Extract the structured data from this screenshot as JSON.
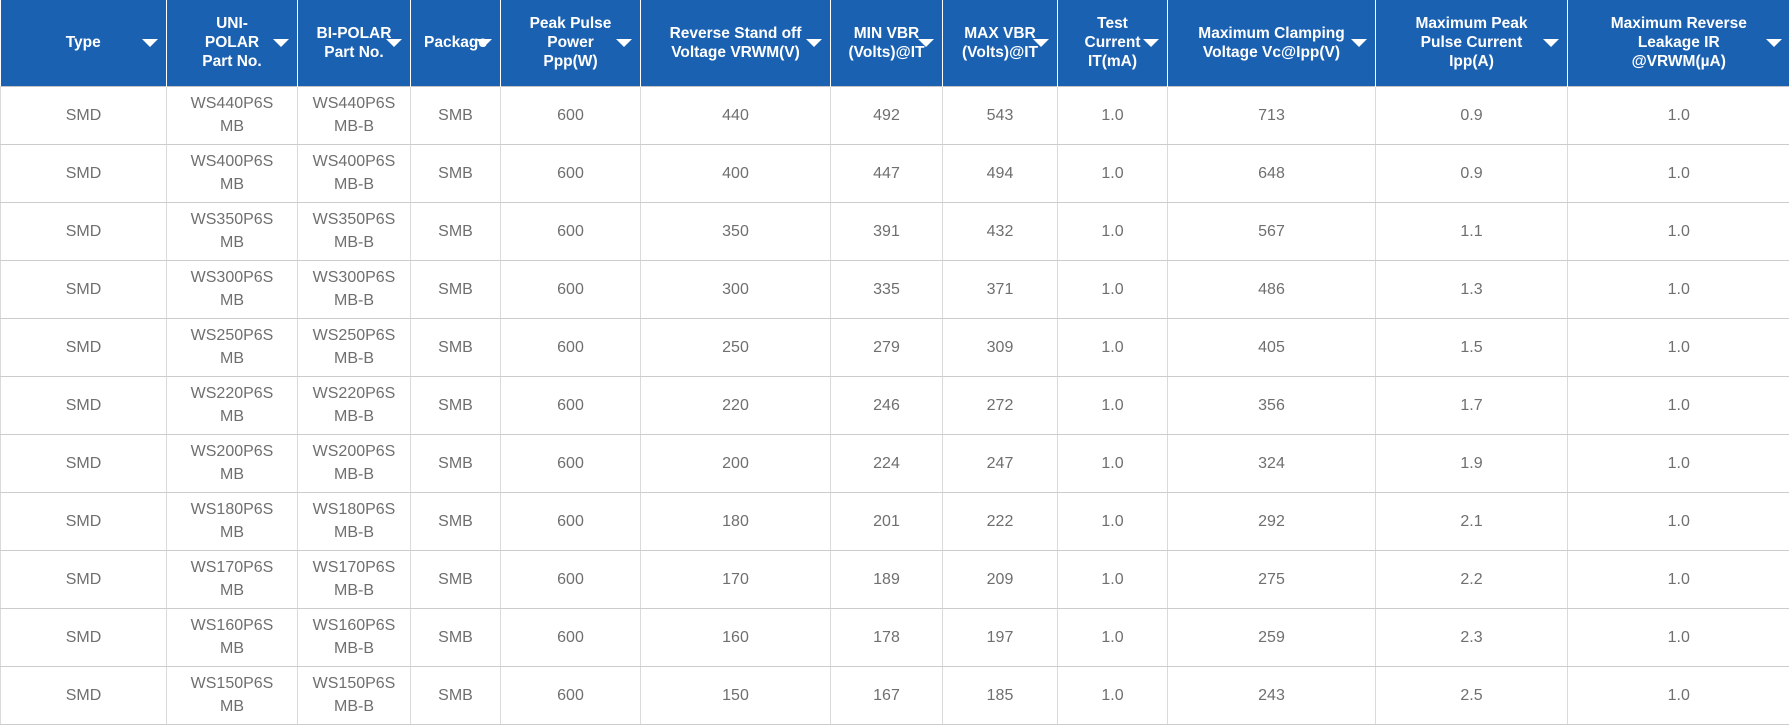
{
  "theme": {
    "header_bg": "#1B61B2",
    "header_text": "#FFFFFF",
    "header_divider": "rgba(255,255,255,0.4)",
    "body_bg": "#FFFFFF",
    "body_text": "#6F6F6F",
    "grid_vertical": "#DADADA",
    "grid_horizontal": "#CCCCCC"
  },
  "table": {
    "filter_icon": "dropdown-arrow",
    "columns": [
      {
        "id": "type",
        "lines": [
          "Type"
        ]
      },
      {
        "id": "unipolar-part-no",
        "lines": [
          "UNI-",
          "POLAR",
          "Part No."
        ]
      },
      {
        "id": "bipolar-part-no",
        "lines": [
          "BI-POLAR",
          "Part No."
        ]
      },
      {
        "id": "package",
        "lines": [
          "Package"
        ]
      },
      {
        "id": "peak-pulse-power",
        "lines": [
          "Peak Pulse",
          "Power",
          "Ppp(W)"
        ]
      },
      {
        "id": "reverse-standoff-voltage",
        "lines": [
          "Reverse Stand off",
          "Voltage VRWM(V)"
        ]
      },
      {
        "id": "min-vbr",
        "lines": [
          "MIN VBR",
          "(Volts)@IT"
        ]
      },
      {
        "id": "max-vbr",
        "lines": [
          "MAX VBR",
          "(Volts)@IT"
        ]
      },
      {
        "id": "test-current",
        "lines": [
          "Test",
          "Current",
          "IT(mA)"
        ]
      },
      {
        "id": "max-clamping-voltage",
        "lines": [
          "Maximum Clamping",
          "Voltage Vc@Ipp(V)"
        ]
      },
      {
        "id": "max-peak-pulse-current",
        "lines": [
          "Maximum Peak",
          "Pulse Current",
          "Ipp(A)"
        ]
      },
      {
        "id": "max-reverse-leakage",
        "lines": [
          "Maximum Reverse",
          "Leakage IR",
          "@VRWM(µA)"
        ]
      }
    ],
    "rows": [
      [
        "SMD",
        "WS440P6SMB",
        "WS440P6SMB-B",
        "SMB",
        "600",
        "440",
        "492",
        "543",
        "1.0",
        "713",
        "0.9",
        "1.0"
      ],
      [
        "SMD",
        "WS400P6SMB",
        "WS400P6SMB-B",
        "SMB",
        "600",
        "400",
        "447",
        "494",
        "1.0",
        "648",
        "0.9",
        "1.0"
      ],
      [
        "SMD",
        "WS350P6SMB",
        "WS350P6SMB-B",
        "SMB",
        "600",
        "350",
        "391",
        "432",
        "1.0",
        "567",
        "1.1",
        "1.0"
      ],
      [
        "SMD",
        "WS300P6SMB",
        "WS300P6SMB-B",
        "SMB",
        "600",
        "300",
        "335",
        "371",
        "1.0",
        "486",
        "1.3",
        "1.0"
      ],
      [
        "SMD",
        "WS250P6SMB",
        "WS250P6SMB-B",
        "SMB",
        "600",
        "250",
        "279",
        "309",
        "1.0",
        "405",
        "1.5",
        "1.0"
      ],
      [
        "SMD",
        "WS220P6SMB",
        "WS220P6SMB-B",
        "SMB",
        "600",
        "220",
        "246",
        "272",
        "1.0",
        "356",
        "1.7",
        "1.0"
      ],
      [
        "SMD",
        "WS200P6SMB",
        "WS200P6SMB-B",
        "SMB",
        "600",
        "200",
        "224",
        "247",
        "1.0",
        "324",
        "1.9",
        "1.0"
      ],
      [
        "SMD",
        "WS180P6SMB",
        "WS180P6SMB-B",
        "SMB",
        "600",
        "180",
        "201",
        "222",
        "1.0",
        "292",
        "2.1",
        "1.0"
      ],
      [
        "SMD",
        "WS170P6SMB",
        "WS170P6SMB-B",
        "SMB",
        "600",
        "170",
        "189",
        "209",
        "1.0",
        "275",
        "2.2",
        "1.0"
      ],
      [
        "SMD",
        "WS160P6SMB",
        "WS160P6SMB-B",
        "SMB",
        "600",
        "160",
        "178",
        "197",
        "1.0",
        "259",
        "2.3",
        "1.0"
      ],
      [
        "SMD",
        "WS150P6SMB",
        "WS150P6SMB-B",
        "SMB",
        "600",
        "150",
        "167",
        "185",
        "1.0",
        "243",
        "2.5",
        "1.0"
      ]
    ]
  }
}
